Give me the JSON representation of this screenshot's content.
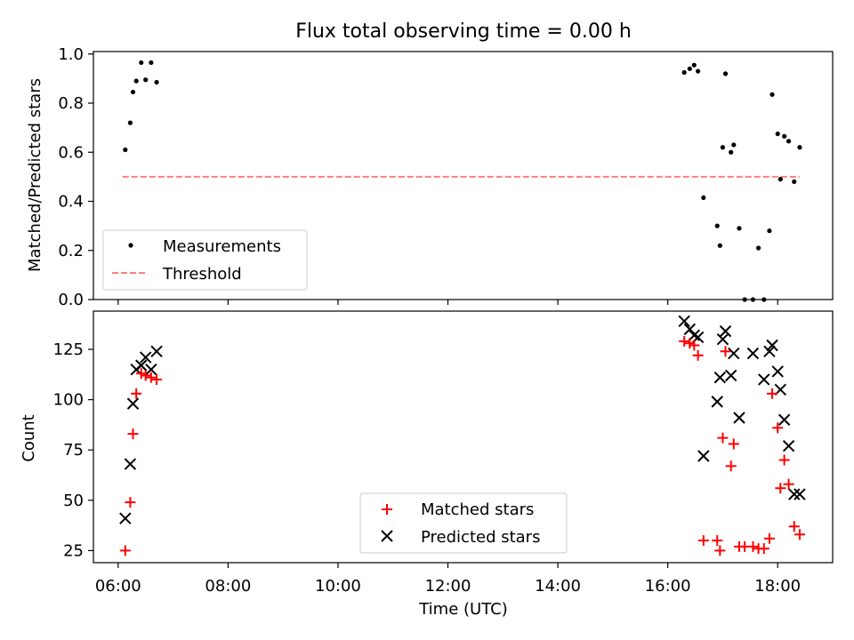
{
  "figure": {
    "title": "Flux total observing time = 0.00 h"
  },
  "chart_data": [
    {
      "type": "scatter",
      "ylabel": "Matched/Predicted stars",
      "xlabel": "",
      "xlim": [
        6.08,
        6.75,
        16.3,
        18.4
      ],
      "xrange_hours": [
        5.55,
        19.0
      ],
      "ylim": [
        0.0,
        1.01
      ],
      "yticks": [
        0.0,
        0.2,
        0.4,
        0.6,
        0.8,
        1.0
      ],
      "ytick_labels": [
        "0.0",
        "0.2",
        "0.4",
        "0.6",
        "0.8",
        "1.0"
      ],
      "legend": {
        "placement": "lower-left",
        "entries": [
          "Measurements",
          "Threshold"
        ]
      },
      "series": [
        {
          "name": "Measurements",
          "marker": "dot",
          "color": "#000000",
          "x": [
            6.13,
            6.22,
            6.27,
            6.33,
            6.42,
            6.5,
            6.6,
            6.7,
            16.3,
            16.4,
            16.48,
            16.55,
            16.65,
            16.9,
            16.95,
            17.0,
            17.05,
            17.15,
            17.2,
            17.3,
            17.4,
            17.55,
            17.65,
            17.75,
            17.85,
            17.9,
            18.0,
            18.05,
            18.12,
            18.2,
            18.3,
            18.4
          ],
          "y": [
            0.61,
            0.72,
            0.845,
            0.89,
            0.965,
            0.895,
            0.965,
            0.885,
            0.925,
            0.94,
            0.955,
            0.93,
            0.415,
            0.3,
            0.22,
            0.62,
            0.92,
            0.6,
            0.63,
            0.29,
            0.0,
            0.0,
            0.21,
            0.0,
            0.28,
            0.835,
            0.675,
            0.49,
            0.665,
            0.645,
            0.48,
            0.62
          ]
        },
        {
          "name": "Threshold",
          "marker": "dashed-line",
          "color": "#ff7f7f",
          "x": [
            6.08,
            18.4
          ],
          "y": [
            0.5,
            0.5
          ]
        }
      ]
    },
    {
      "type": "scatter",
      "xlabel": "Time (UTC)",
      "ylabel": "Count",
      "ylim": [
        19,
        144
      ],
      "yticks": [
        25,
        50,
        75,
        100,
        125
      ],
      "ytick_labels": [
        "25",
        "50",
        "75",
        "100",
        "125"
      ],
      "xticks": [
        6,
        8,
        10,
        12,
        14,
        16,
        18
      ],
      "xtick_labels": [
        "06:00",
        "08:00",
        "10:00",
        "12:00",
        "14:00",
        "16:00",
        "18:00"
      ],
      "legend": {
        "placement": "lower-center",
        "entries": [
          "Matched stars",
          "Predicted stars"
        ]
      },
      "series": [
        {
          "name": "Matched stars",
          "marker": "plus",
          "color": "#ff0000",
          "x": [
            6.13,
            6.22,
            6.27,
            6.33,
            6.42,
            6.5,
            6.6,
            6.7,
            16.3,
            16.4,
            16.48,
            16.55,
            16.65,
            16.9,
            16.95,
            17.0,
            17.05,
            17.15,
            17.2,
            17.3,
            17.4,
            17.55,
            17.65,
            17.75,
            17.85,
            17.9,
            18.0,
            18.05,
            18.12,
            18.2,
            18.3,
            18.4
          ],
          "y": [
            25,
            49,
            83,
            103,
            113,
            112,
            111,
            110,
            129,
            128,
            127,
            122,
            30,
            30,
            25,
            81,
            124,
            67,
            78,
            27,
            27,
            27,
            26,
            26,
            31,
            103,
            86,
            56,
            70,
            58,
            37,
            33
          ]
        },
        {
          "name": "Predicted stars",
          "marker": "x",
          "color": "#000000",
          "x": [
            6.13,
            6.22,
            6.27,
            6.33,
            6.42,
            6.5,
            6.6,
            6.7,
            16.3,
            16.4,
            16.48,
            16.55,
            16.65,
            16.9,
            16.95,
            17.0,
            17.05,
            17.15,
            17.2,
            17.3,
            17.55,
            17.75,
            17.85,
            17.9,
            18.0,
            18.05,
            18.12,
            18.2,
            18.3,
            18.4
          ],
          "y": [
            41,
            68,
            98,
            115,
            117,
            121,
            115,
            124,
            139,
            135,
            132,
            131,
            72,
            99,
            111,
            130,
            134,
            112,
            123,
            91,
            123,
            110,
            124,
            127,
            114,
            105,
            90,
            77,
            53,
            53
          ]
        }
      ]
    }
  ]
}
